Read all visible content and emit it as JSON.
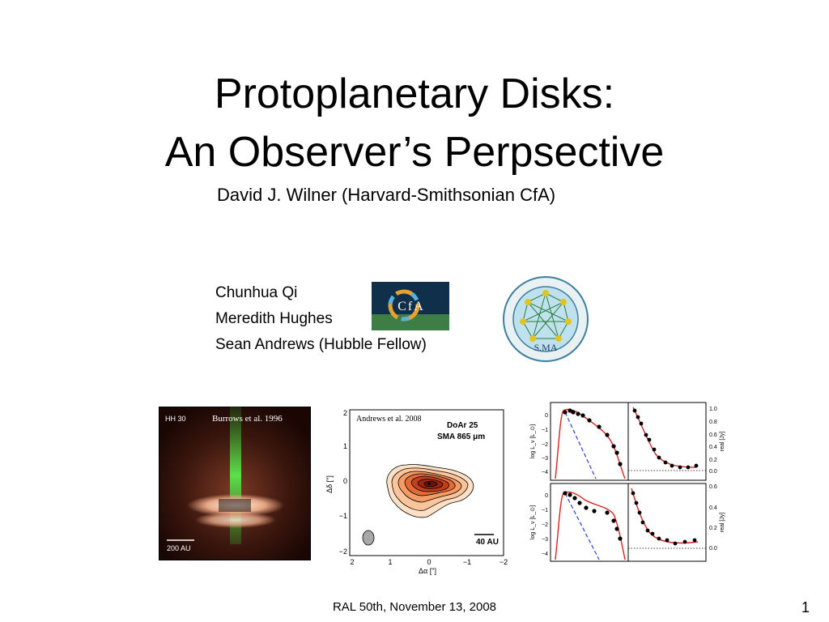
{
  "slide": {
    "title_line1": "Protoplanetary Disks:",
    "title_line2": "An Observer’s Perpsective",
    "subtitle": "David J. Wilner (Harvard-Smithsonian CfA)",
    "collaborators": [
      "Chunhua Qi",
      "Meredith Hughes",
      "Sean Andrews (Hubble Fellow)"
    ],
    "logos": {
      "cfa_text": "CfA",
      "sma_text": "S.MA"
    },
    "footer": "RAL 50th, November 13, 2008",
    "page_number": "1"
  },
  "figures": {
    "hh30": {
      "label": "HH 30",
      "credit": "Burrows et al. 1996",
      "scale": "200 AU"
    },
    "doar25": {
      "credit": "Andrews et al. 2008",
      "name": "DoAr 25",
      "instrument": "SMA 865 μm",
      "scale": "40 AU",
      "xlabel": "Δα [\"]",
      "ylabel": "Δδ [\"]",
      "xticks": [
        "2",
        "1",
        "0",
        "−1",
        "−2"
      ],
      "yticks": [
        "2",
        "1",
        "0",
        "−1",
        "−2"
      ]
    },
    "sed": {
      "left_ylabel": "log L_ν [L_⊙]",
      "right_ylabel": "real [Jy]",
      "top_left_ticks": [
        "0",
        "−1",
        "−2",
        "−3",
        "−4"
      ],
      "top_right_ticks": [
        "1.0",
        "0.8",
        "0.6",
        "0.4",
        "0.2",
        "0.0"
      ],
      "bottom_left_ticks": [
        "0",
        "−1",
        "−2",
        "−3",
        "−4"
      ],
      "bottom_right_ticks": [
        "0.6",
        "0.4",
        "0.2",
        "0.0"
      ]
    }
  }
}
